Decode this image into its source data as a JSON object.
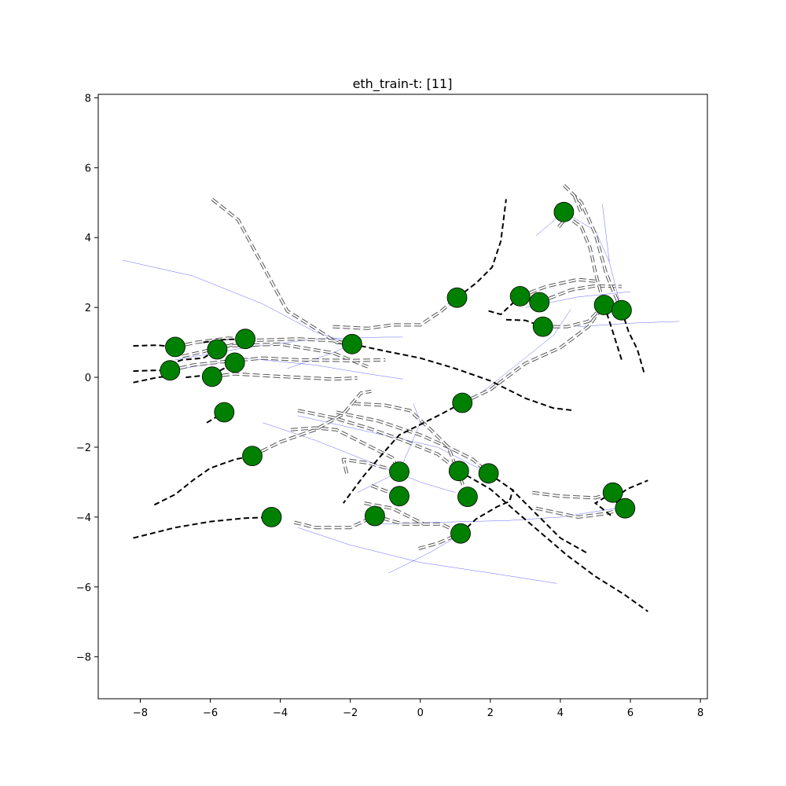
{
  "chart_data": {
    "type": "scatter",
    "title": "eth_train-t: [11]",
    "xlabel": "",
    "ylabel": "",
    "xlim": [
      -9.2,
      8.2
    ],
    "ylim": [
      -9.2,
      8.1
    ],
    "xticks": [
      -8,
      -6,
      -4,
      -2,
      0,
      2,
      4,
      6,
      8
    ],
    "yticks": [
      -8,
      -6,
      -4,
      -2,
      0,
      2,
      4,
      6,
      8
    ],
    "grid": false,
    "colors": {
      "agent": "#008000",
      "agent_edge": "#000000",
      "future": "#000000",
      "history": "#555555",
      "prediction": "#0000ff"
    },
    "agents": [
      {
        "x": -7.0,
        "y": 0.87
      },
      {
        "x": -7.15,
        "y": 0.2
      },
      {
        "x": -5.8,
        "y": 0.8
      },
      {
        "x": -5.0,
        "y": 1.1
      },
      {
        "x": -5.3,
        "y": 0.42
      },
      {
        "x": -5.95,
        "y": 0.02
      },
      {
        "x": -5.6,
        "y": -1.0
      },
      {
        "x": -1.95,
        "y": 0.95
      },
      {
        "x": -4.8,
        "y": -2.25
      },
      {
        "x": -4.25,
        "y": -4.0
      },
      {
        "x": -1.3,
        "y": -3.97
      },
      {
        "x": -0.6,
        "y": -2.7
      },
      {
        "x": -0.6,
        "y": -3.4
      },
      {
        "x": 1.05,
        "y": 2.28
      },
      {
        "x": 1.2,
        "y": -0.73
      },
      {
        "x": 1.1,
        "y": -2.68
      },
      {
        "x": 1.35,
        "y": -3.42
      },
      {
        "x": 1.95,
        "y": -2.75
      },
      {
        "x": 1.15,
        "y": -4.47
      },
      {
        "x": 2.85,
        "y": 2.32
      },
      {
        "x": 3.4,
        "y": 2.15
      },
      {
        "x": 3.5,
        "y": 1.45
      },
      {
        "x": 4.1,
        "y": 4.73
      },
      {
        "x": 5.25,
        "y": 2.07
      },
      {
        "x": 5.75,
        "y": 1.92
      },
      {
        "x": 5.5,
        "y": -3.3
      },
      {
        "x": 5.85,
        "y": -3.75
      }
    ],
    "future_paths": [
      [
        [
          -8.2,
          0.9
        ],
        [
          -7.5,
          0.92
        ],
        [
          -7.0,
          0.87
        ]
      ],
      [
        [
          -8.2,
          0.18
        ],
        [
          -7.6,
          0.2
        ],
        [
          -7.15,
          0.2
        ]
      ],
      [
        [
          -8.2,
          -0.15
        ],
        [
          -7.5,
          0.0
        ],
        [
          -7.0,
          0.05
        ]
      ],
      [
        [
          -7.4,
          0.3
        ],
        [
          -6.8,
          0.5
        ],
        [
          -6.2,
          0.55
        ],
        [
          -5.8,
          0.8
        ]
      ],
      [
        [
          -6.7,
          0.0
        ],
        [
          -6.2,
          0.05
        ],
        [
          -5.8,
          0.15
        ],
        [
          -5.3,
          0.42
        ]
      ],
      [
        [
          -6.2,
          1.0
        ],
        [
          -5.6,
          1.08
        ],
        [
          -5.0,
          1.1
        ]
      ],
      [
        [
          -6.1,
          -1.3
        ],
        [
          -5.6,
          -1.0
        ]
      ],
      [
        [
          -7.6,
          -3.65
        ],
        [
          -7.0,
          -3.35
        ],
        [
          -6.5,
          -2.95
        ],
        [
          -6.0,
          -2.6
        ],
        [
          -5.3,
          -2.35
        ],
        [
          -4.8,
          -2.25
        ]
      ],
      [
        [
          -8.2,
          -4.6
        ],
        [
          -7.0,
          -4.3
        ],
        [
          -6.0,
          -4.13
        ],
        [
          -5.0,
          -4.03
        ],
        [
          -4.25,
          -4.0
        ]
      ],
      [
        [
          -1.95,
          0.95
        ],
        [
          -1.0,
          0.75
        ],
        [
          0.0,
          0.55
        ],
        [
          1.0,
          0.25
        ],
        [
          2.0,
          -0.1
        ],
        [
          3.0,
          -0.6
        ],
        [
          3.8,
          -0.88
        ],
        [
          4.4,
          -0.95
        ]
      ],
      [
        [
          1.05,
          2.28
        ],
        [
          1.6,
          2.7
        ],
        [
          2.05,
          3.15
        ],
        [
          2.3,
          3.9
        ],
        [
          2.4,
          4.7
        ],
        [
          2.45,
          5.1
        ]
      ],
      [
        [
          1.2,
          -0.73
        ],
        [
          0.6,
          -1.05
        ],
        [
          0.0,
          -1.35
        ],
        [
          -0.6,
          -1.65
        ],
        [
          -1.0,
          -2.1
        ],
        [
          -1.6,
          -2.8
        ],
        [
          -2.2,
          -3.6
        ]
      ],
      [
        [
          1.1,
          -2.68
        ],
        [
          2.0,
          -3.2
        ],
        [
          2.8,
          -3.9
        ],
        [
          3.5,
          -4.5
        ],
        [
          4.2,
          -5.1
        ],
        [
          5.0,
          -5.7
        ],
        [
          5.8,
          -6.2
        ],
        [
          6.5,
          -6.7
        ]
      ],
      [
        [
          1.95,
          -2.75
        ],
        [
          2.6,
          -3.2
        ],
        [
          3.3,
          -3.9
        ],
        [
          4.0,
          -4.6
        ],
        [
          4.8,
          -5.05
        ]
      ],
      [
        [
          1.15,
          -4.47
        ],
        [
          1.6,
          -4.05
        ],
        [
          2.2,
          -3.7
        ],
        [
          2.55,
          -3.55
        ],
        [
          2.65,
          -3.2
        ]
      ],
      [
        [
          1.95,
          1.9
        ],
        [
          2.3,
          1.8
        ],
        [
          2.85,
          2.32
        ]
      ],
      [
        [
          2.45,
          1.65
        ],
        [
          3.0,
          1.63
        ],
        [
          3.5,
          1.45
        ]
      ],
      [
        [
          5.25,
          2.07
        ],
        [
          5.5,
          1.3
        ],
        [
          5.75,
          0.5
        ]
      ],
      [
        [
          5.75,
          1.92
        ],
        [
          5.95,
          1.3
        ],
        [
          6.2,
          0.8
        ],
        [
          6.4,
          0.1
        ]
      ],
      [
        [
          5.85,
          -3.75
        ],
        [
          5.5,
          -3.5
        ],
        [
          5.9,
          -3.2
        ],
        [
          6.5,
          -2.95
        ]
      ],
      [
        [
          5.5,
          -3.3
        ],
        [
          5.0,
          -3.6
        ],
        [
          5.5,
          -4.0
        ]
      ]
    ],
    "history_paths": [
      [
        [
          -5.95,
          5.1
        ],
        [
          -5.2,
          4.5
        ],
        [
          -4.5,
          3.2
        ],
        [
          -3.8,
          1.9
        ],
        [
          -3.0,
          1.4
        ],
        [
          -2.4,
          1.0
        ],
        [
          -1.95,
          0.95
        ]
      ],
      [
        [
          -2.5,
          1.45
        ],
        [
          -1.5,
          1.4
        ],
        [
          -0.8,
          1.5
        ],
        [
          0.0,
          1.5
        ],
        [
          0.6,
          1.9
        ],
        [
          1.05,
          2.28
        ]
      ],
      [
        [
          -5.8,
          0.8
        ],
        [
          -5.0,
          1.05
        ],
        [
          -3.5,
          1.1
        ],
        [
          -2.5,
          1.05
        ],
        [
          -1.95,
          0.95
        ]
      ],
      [
        [
          -7.0,
          0.87
        ],
        [
          -6.4,
          1.0
        ],
        [
          -5.5,
          1.12
        ],
        [
          -5.0,
          1.1
        ]
      ],
      [
        [
          -6.8,
          0.6
        ],
        [
          -5.5,
          0.9
        ],
        [
          -4.0,
          0.95
        ],
        [
          -2.5,
          0.7
        ],
        [
          -1.5,
          0.3
        ]
      ],
      [
        [
          -7.15,
          0.2
        ],
        [
          -6.5,
          0.35
        ],
        [
          -5.6,
          0.45
        ],
        [
          -4.5,
          0.55
        ],
        [
          -3.5,
          0.5
        ],
        [
          -2.0,
          0.48
        ],
        [
          -1.0,
          0.5
        ]
      ],
      [
        [
          -5.95,
          0.02
        ],
        [
          -5.3,
          0.1
        ],
        [
          -4.5,
          0.05
        ],
        [
          -3.5,
          0.0
        ],
        [
          -2.5,
          -0.05
        ],
        [
          -1.8,
          -0.02
        ]
      ],
      [
        [
          -4.8,
          -2.25
        ],
        [
          -4.0,
          -1.85
        ],
        [
          -3.0,
          -1.5
        ],
        [
          -2.2,
          -1.05
        ],
        [
          -1.7,
          -0.45
        ],
        [
          -1.4,
          -0.4
        ]
      ],
      [
        [
          -3.7,
          -1.5
        ],
        [
          -3.0,
          -1.45
        ],
        [
          -2.4,
          -1.5
        ],
        [
          -1.6,
          -1.9
        ],
        [
          -0.8,
          -2.3
        ],
        [
          -0.6,
          -2.7
        ]
      ],
      [
        [
          -3.5,
          -0.95
        ],
        [
          -2.5,
          -1.15
        ],
        [
          -1.5,
          -1.45
        ],
        [
          -0.5,
          -1.8
        ],
        [
          0.5,
          -2.2
        ],
        [
          1.1,
          -2.68
        ]
      ],
      [
        [
          -2.4,
          -1.0
        ],
        [
          -1.2,
          -1.25
        ],
        [
          0.0,
          -1.65
        ],
        [
          0.8,
          -2.0
        ],
        [
          1.5,
          -2.35
        ],
        [
          1.95,
          -2.75
        ]
      ],
      [
        [
          -2.1,
          -2.75
        ],
        [
          -2.2,
          -2.35
        ],
        [
          -1.5,
          -2.45
        ],
        [
          -0.6,
          -2.7
        ]
      ],
      [
        [
          -1.9,
          -0.75
        ],
        [
          -1.0,
          -0.8
        ],
        [
          -0.3,
          -0.95
        ],
        [
          0.3,
          -1.5
        ],
        [
          0.8,
          -2.0
        ],
        [
          1.35,
          -3.42
        ]
      ],
      [
        [
          -1.4,
          -3.1
        ],
        [
          -0.6,
          -3.4
        ]
      ],
      [
        [
          -1.6,
          -3.6
        ],
        [
          -0.8,
          -3.75
        ],
        [
          0.1,
          -4.2
        ]
      ],
      [
        [
          -3.6,
          -4.15
        ],
        [
          -3.0,
          -4.3
        ],
        [
          -2.0,
          -4.3
        ],
        [
          -1.3,
          -3.97
        ],
        [
          -0.5,
          -4.2
        ],
        [
          0.6,
          -4.2
        ],
        [
          1.15,
          -4.47
        ]
      ],
      [
        [
          -0.05,
          -4.9
        ],
        [
          0.5,
          -4.75
        ],
        [
          1.15,
          -4.47
        ]
      ],
      [
        [
          1.2,
          -0.73
        ],
        [
          2.0,
          -0.35
        ],
        [
          3.0,
          0.4
        ],
        [
          4.0,
          0.85
        ],
        [
          4.8,
          1.45
        ],
        [
          5.25,
          2.07
        ]
      ],
      [
        [
          2.85,
          2.32
        ],
        [
          3.6,
          2.6
        ],
        [
          4.5,
          2.8
        ],
        [
          5.0,
          2.75
        ]
      ],
      [
        [
          3.4,
          2.15
        ],
        [
          4.3,
          2.5
        ],
        [
          5.0,
          2.62
        ],
        [
          5.75,
          2.6
        ]
      ],
      [
        [
          3.5,
          1.45
        ],
        [
          4.2,
          1.45
        ],
        [
          4.8,
          1.6
        ],
        [
          5.25,
          2.07
        ]
      ],
      [
        [
          3.95,
          4.3
        ],
        [
          4.2,
          4.6
        ],
        [
          4.6,
          4.3
        ],
        [
          4.85,
          3.7
        ],
        [
          5.0,
          3.0
        ],
        [
          5.25,
          2.07
        ]
      ],
      [
        [
          4.1,
          5.5
        ],
        [
          4.6,
          5.0
        ],
        [
          5.0,
          4.1
        ],
        [
          5.3,
          3.0
        ],
        [
          5.5,
          2.5
        ],
        [
          5.75,
          1.92
        ]
      ],
      [
        [
          4.4,
          5.2
        ],
        [
          4.6,
          4.7
        ]
      ],
      [
        [
          3.2,
          -3.3
        ],
        [
          4.0,
          -3.4
        ],
        [
          5.0,
          -3.45
        ],
        [
          5.5,
          -3.3
        ]
      ],
      [
        [
          3.3,
          -3.75
        ],
        [
          4.5,
          -4.0
        ],
        [
          5.3,
          -3.9
        ],
        [
          5.85,
          -3.75
        ]
      ]
    ],
    "prediction_paths": [
      [
        [
          -8.5,
          3.35
        ],
        [
          -6.5,
          2.9
        ],
        [
          -4.5,
          2.1
        ],
        [
          -3.0,
          1.3
        ],
        [
          -1.95,
          0.95
        ]
      ],
      [
        [
          -7.0,
          0.5
        ],
        [
          -5.0,
          0.85
        ],
        [
          -3.0,
          1.1
        ],
        [
          -1.0,
          1.15
        ],
        [
          -0.5,
          1.15
        ]
      ],
      [
        [
          -6.8,
          0.25
        ],
        [
          -5.0,
          0.55
        ],
        [
          -3.0,
          0.35
        ],
        [
          -1.5,
          0.1
        ],
        [
          -0.5,
          -0.05
        ]
      ],
      [
        [
          -3.8,
          0.25
        ],
        [
          -2.5,
          0.7
        ],
        [
          -1.95,
          0.95
        ]
      ],
      [
        [
          -4.5,
          -1.3
        ],
        [
          -3.0,
          -1.8
        ],
        [
          -1.5,
          -2.4
        ],
        [
          0.0,
          -3.0
        ],
        [
          1.0,
          -3.3
        ]
      ],
      [
        [
          -3.5,
          -4.3
        ],
        [
          -2.0,
          -4.8
        ],
        [
          0.0,
          -5.3
        ],
        [
          2.0,
          -5.6
        ],
        [
          3.9,
          -5.9
        ]
      ],
      [
        [
          -1.2,
          -4.2
        ],
        [
          0.5,
          -4.15
        ],
        [
          2.5,
          -4.1
        ],
        [
          4.0,
          -4.0
        ],
        [
          5.6,
          -3.75
        ]
      ],
      [
        [
          -0.9,
          -5.6
        ],
        [
          0.3,
          -5.0
        ],
        [
          1.2,
          -4.47
        ]
      ],
      [
        [
          -3.5,
          -1.1
        ],
        [
          -1.5,
          -1.55
        ],
        [
          0.5,
          -2.0
        ],
        [
          1.95,
          -2.75
        ]
      ],
      [
        [
          -1.8,
          -3.3
        ],
        [
          -0.6,
          -2.7
        ],
        [
          0.0,
          -1.3
        ],
        [
          -0.2,
          -0.75
        ]
      ],
      [
        [
          1.8,
          -0.4
        ],
        [
          2.8,
          0.4
        ],
        [
          3.8,
          1.2
        ],
        [
          4.3,
          1.95
        ]
      ],
      [
        [
          3.0,
          2.0
        ],
        [
          4.5,
          2.3
        ],
        [
          6.0,
          2.45
        ]
      ],
      [
        [
          3.3,
          4.05
        ],
        [
          4.1,
          4.73
        ],
        [
          5.0,
          4.2
        ],
        [
          5.4,
          3.3
        ]
      ],
      [
        [
          5.2,
          4.95
        ],
        [
          5.4,
          3.3
        ],
        [
          5.75,
          1.92
        ]
      ],
      [
        [
          4.5,
          1.45
        ],
        [
          6.0,
          1.55
        ],
        [
          7.4,
          1.6
        ]
      ]
    ]
  }
}
